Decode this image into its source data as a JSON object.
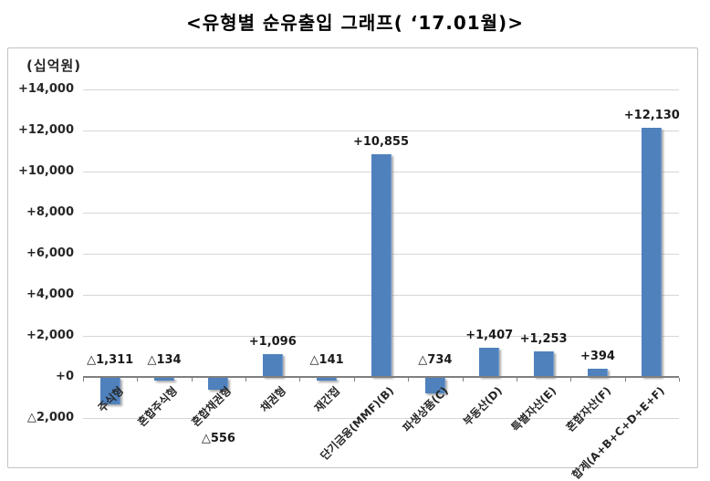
{
  "title": "<유형별 순유출입 그래프( ‘17.01월)>",
  "chart_data": {
    "type": "bar",
    "title": "<유형별 순유출입 그래프( ‘17.01월)>",
    "xlabel": "",
    "ylabel": "(십억원)",
    "ylim": [
      -2000,
      14000
    ],
    "grid": true,
    "legend": "none",
    "bar_color": "#4f81bd",
    "gridline_color": "#d6d6d6",
    "axis_color": "#7f7f7f",
    "categories": [
      "주식형",
      "혼합주식형",
      "혼합채권형",
      "채권형",
      "재간접",
      "단기금융(MMF)(B)",
      "파생상품(C)",
      "부동산(D)",
      "특별자산(E)",
      "혼합자산(F)",
      "합계(A+B+C+D+E+F)"
    ],
    "values": [
      -1311,
      -134,
      -556,
      1096,
      -141,
      10855,
      -734,
      1407,
      1253,
      394,
      12130
    ],
    "points": [
      {
        "category": "주식형",
        "value": -1311,
        "label": "△1,311"
      },
      {
        "category": "혼합주식형",
        "value": -134,
        "label": "△134"
      },
      {
        "category": "혼합채권형",
        "value": -556,
        "label": "△556",
        "label_pos": "below"
      },
      {
        "category": "채권형",
        "value": 1096,
        "label": "+1,096"
      },
      {
        "category": "재간접",
        "value": -141,
        "label": "△141"
      },
      {
        "category": "단기금융(MMF)(B)",
        "value": 10855,
        "label": "+10,855"
      },
      {
        "category": "파생상품(C)",
        "value": -734,
        "label": "△734"
      },
      {
        "category": "부동산(D)",
        "value": 1407,
        "label": "+1,407"
      },
      {
        "category": "특별자산(E)",
        "value": 1253,
        "label": "+1,253"
      },
      {
        "category": "혼합자산(F)",
        "value": 394,
        "label": "+394"
      },
      {
        "category": "합계(A+B+C+D+E+F)",
        "value": 12130,
        "label": "+12,130"
      }
    ],
    "y_ticks": [
      {
        "label": "+14,000",
        "value": 14000
      },
      {
        "label": "+12,000",
        "value": 12000
      },
      {
        "label": "+10,000",
        "value": 10000
      },
      {
        "label": "+8,000",
        "value": 8000
      },
      {
        "label": "+6,000",
        "value": 6000
      },
      {
        "label": "+4,000",
        "value": 4000
      },
      {
        "label": "+2,000",
        "value": 2000
      },
      {
        "label": "+0",
        "value": 0
      },
      {
        "label": "△2,000",
        "value": -2000
      }
    ]
  }
}
